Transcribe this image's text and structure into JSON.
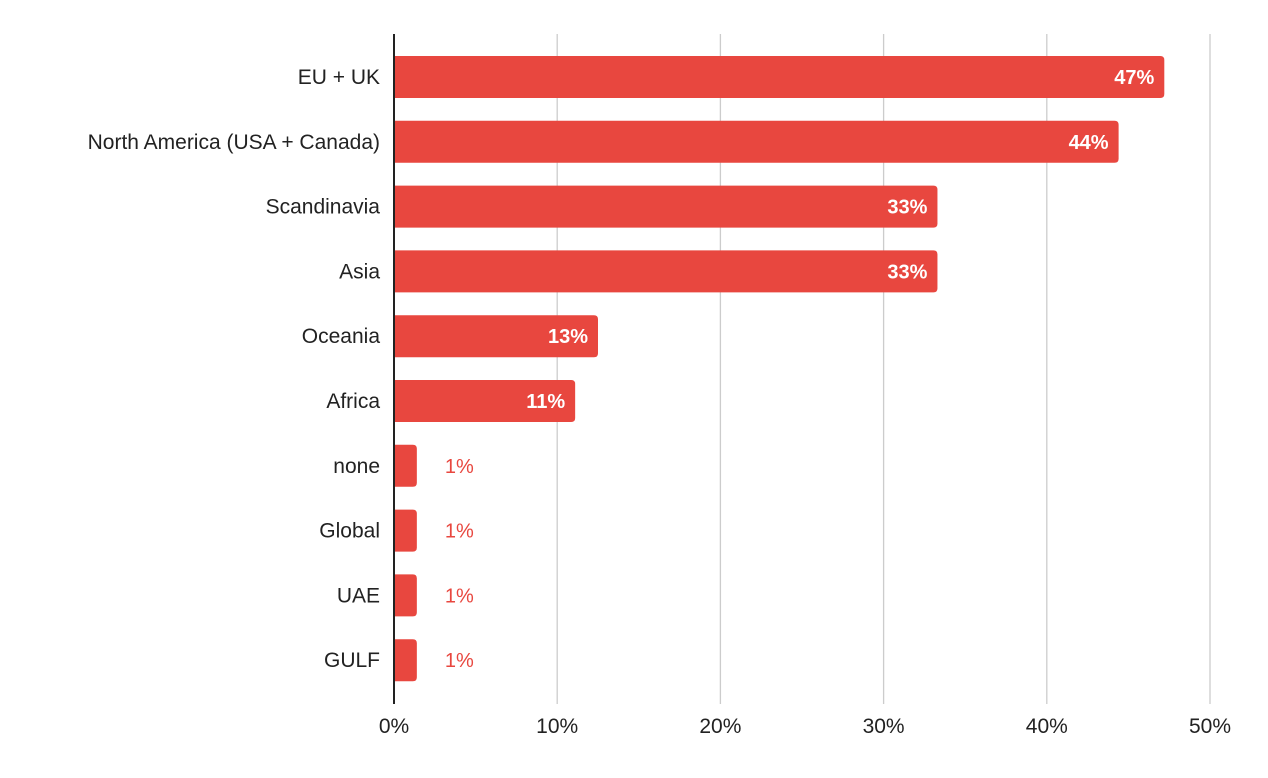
{
  "chart_data": {
    "type": "bar",
    "orientation": "horizontal",
    "categories": [
      "EU + UK",
      "North America (USA + Canada)",
      "Scandinavia",
      "Asia",
      "Oceania",
      "Africa",
      "none",
      "Global",
      "UAE",
      "GULF"
    ],
    "values": [
      47.2,
      44.4,
      33.3,
      33.3,
      12.5,
      11.1,
      1.4,
      1.4,
      1.4,
      1.4
    ],
    "value_labels": [
      "47%",
      "44%",
      "33%",
      "33%",
      "13%",
      "11%",
      "1%",
      "1%",
      "1%",
      "1%"
    ],
    "xlim": [
      0,
      50
    ],
    "x_ticks": [
      0,
      10,
      20,
      30,
      40,
      50
    ],
    "x_tick_labels": [
      "0%",
      "10%",
      "20%",
      "30%",
      "40%",
      "50%"
    ],
    "title": "",
    "xlabel": "",
    "ylabel": "",
    "grid": "vertical",
    "legend": "none",
    "colors": {
      "bar": "#e8473f",
      "grid": "#cccccc",
      "axis": "#222222",
      "label_inside": "#ffffff",
      "label_outside": "#e8473f"
    }
  }
}
